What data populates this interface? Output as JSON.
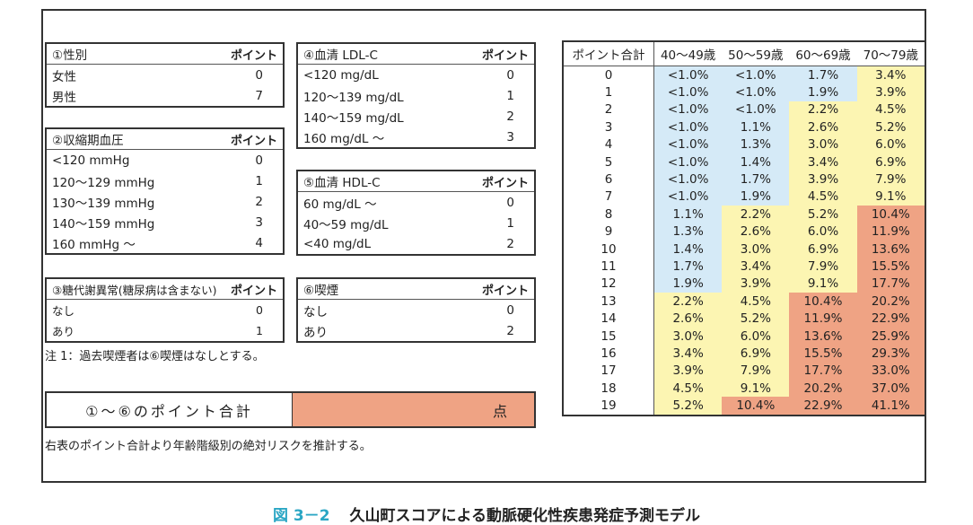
{
  "tables": {
    "t1": {
      "title": "①性別",
      "point_header": "ポイント",
      "rows": [
        [
          "女性",
          "0"
        ],
        [
          "男性",
          "7"
        ]
      ]
    },
    "t2": {
      "title": "②収縮期血圧",
      "point_header": "ポイント",
      "rows": [
        [
          "<120 mmHg",
          "0"
        ],
        [
          "120～129 mmHg",
          "1"
        ],
        [
          "130～139 mmHg",
          "2"
        ],
        [
          "140～159 mmHg",
          "3"
        ],
        [
          "160 mmHg ～",
          "4"
        ]
      ]
    },
    "t3": {
      "title": "③糖代謝異常(糖尿病は含まない)",
      "point_header": "ポイント",
      "rows": [
        [
          "なし",
          "0"
        ],
        [
          "あり",
          "1"
        ]
      ]
    },
    "t4": {
      "title": "④血清 LDL-C",
      "point_header": "ポイント",
      "rows": [
        [
          "<120 mg/dL",
          "0"
        ],
        [
          "120～139 mg/dL",
          "1"
        ],
        [
          "140～159 mg/dL",
          "2"
        ],
        [
          "160 mg/dL ～",
          "3"
        ]
      ]
    },
    "t5": {
      "title": "⑤血清 HDL-C",
      "point_header": "ポイント",
      "rows": [
        [
          "60 mg/dL ～",
          "0"
        ],
        [
          "40～59 mg/dL",
          "1"
        ],
        [
          "<40 mg/dL",
          "2"
        ]
      ]
    },
    "t6": {
      "title": "⑥喫煙",
      "point_header": "ポイント",
      "rows": [
        [
          "なし",
          "0"
        ],
        [
          "あり",
          "2"
        ]
      ]
    }
  },
  "note": "注 1：過去喫煙者は⑥喫煙はなしとする。",
  "sum_box": {
    "label": "①～⑥のポイント合計",
    "unit": "点"
  },
  "sum_note": "右表のポイント合計より年齢階級別の絶対リスクを推計する。",
  "risk_table": {
    "headers": [
      "ポイント合計",
      "40～49歳",
      "50～59歳",
      "60～69歳",
      "70～79歳"
    ],
    "colors": {
      "low": "#d5eaf7",
      "mid": "#fcf5b2",
      "high": "#efa384"
    },
    "rows": [
      {
        "p": "0",
        "v": [
          "<1.0%",
          "<1.0%",
          "1.7%",
          "3.4%"
        ],
        "c": "bbby"
      },
      {
        "p": "1",
        "v": [
          "<1.0%",
          "<1.0%",
          "1.9%",
          "3.9%"
        ],
        "c": "bbby"
      },
      {
        "p": "2",
        "v": [
          "<1.0%",
          "<1.0%",
          "2.2%",
          "4.5%"
        ],
        "c": "bbyy"
      },
      {
        "p": "3",
        "v": [
          "<1.0%",
          "1.1%",
          "2.6%",
          "5.2%"
        ],
        "c": "bbyy"
      },
      {
        "p": "4",
        "v": [
          "<1.0%",
          "1.3%",
          "3.0%",
          "6.0%"
        ],
        "c": "bbyy"
      },
      {
        "p": "5",
        "v": [
          "<1.0%",
          "1.4%",
          "3.4%",
          "6.9%"
        ],
        "c": "bbyy"
      },
      {
        "p": "6",
        "v": [
          "<1.0%",
          "1.7%",
          "3.9%",
          "7.9%"
        ],
        "c": "bbyy"
      },
      {
        "p": "7",
        "v": [
          "<1.0%",
          "1.9%",
          "4.5%",
          "9.1%"
        ],
        "c": "bbyy"
      },
      {
        "p": "8",
        "v": [
          "1.1%",
          "2.2%",
          "5.2%",
          "10.4%"
        ],
        "c": "byyr"
      },
      {
        "p": "9",
        "v": [
          "1.3%",
          "2.6%",
          "6.0%",
          "11.9%"
        ],
        "c": "byyr"
      },
      {
        "p": "10",
        "v": [
          "1.4%",
          "3.0%",
          "6.9%",
          "13.6%"
        ],
        "c": "byyr"
      },
      {
        "p": "11",
        "v": [
          "1.7%",
          "3.4%",
          "7.9%",
          "15.5%"
        ],
        "c": "byyr"
      },
      {
        "p": "12",
        "v": [
          "1.9%",
          "3.9%",
          "9.1%",
          "17.7%"
        ],
        "c": "byyr"
      },
      {
        "p": "13",
        "v": [
          "2.2%",
          "4.5%",
          "10.4%",
          "20.2%"
        ],
        "c": "yyrr"
      },
      {
        "p": "14",
        "v": [
          "2.6%",
          "5.2%",
          "11.9%",
          "22.9%"
        ],
        "c": "yyrr"
      },
      {
        "p": "15",
        "v": [
          "3.0%",
          "6.0%",
          "13.6%",
          "25.9%"
        ],
        "c": "yyrr"
      },
      {
        "p": "16",
        "v": [
          "3.4%",
          "6.9%",
          "15.5%",
          "29.3%"
        ],
        "c": "yyrr"
      },
      {
        "p": "17",
        "v": [
          "3.9%",
          "7.9%",
          "17.7%",
          "33.0%"
        ],
        "c": "yyrr"
      },
      {
        "p": "18",
        "v": [
          "4.5%",
          "9.1%",
          "20.2%",
          "37.0%"
        ],
        "c": "yyrr"
      },
      {
        "p": "19",
        "v": [
          "5.2%",
          "10.4%",
          "22.9%",
          "41.1%"
        ],
        "c": "yrrr"
      }
    ]
  },
  "caption": {
    "number": "図 3－2",
    "title": "久山町スコアによる動脈硬化性疾患発症予測モデル"
  }
}
